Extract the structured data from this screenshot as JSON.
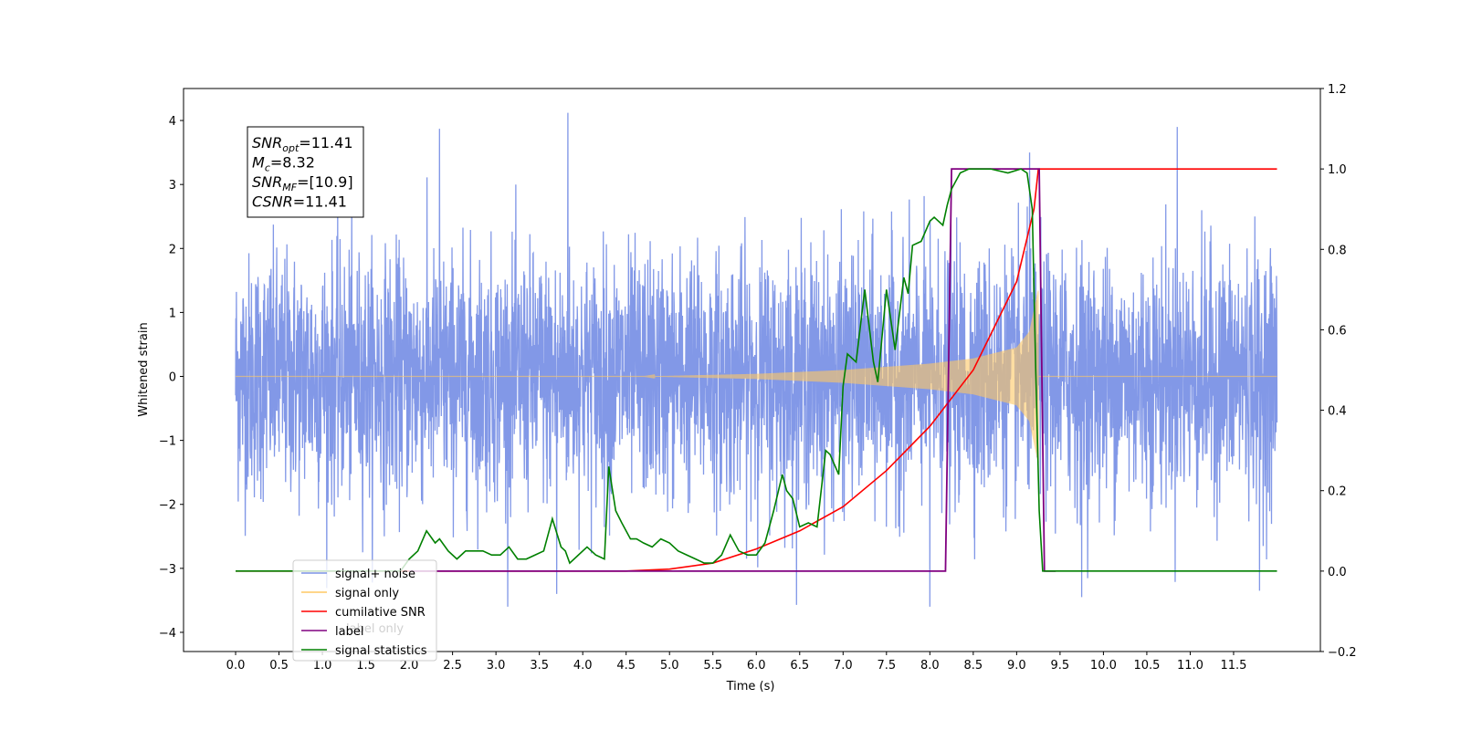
{
  "chart_data": {
    "type": "line",
    "xlabel": "Time (s)",
    "ylabel_left": "Whitened strain",
    "xlim": [
      -0.6,
      12.5
    ],
    "ylim_left": [
      -4.3,
      4.5
    ],
    "ylim_right": [
      -0.2,
      1.2
    ],
    "x_ticks": [
      "0.0",
      "0.5",
      "1.0",
      "1.5",
      "2.0",
      "2.5",
      "3.0",
      "3.5",
      "4.0",
      "4.5",
      "5.0",
      "5.5",
      "6.0",
      "6.5",
      "7.0",
      "7.5",
      "8.0",
      "8.5",
      "9.0",
      "9.5",
      "10.0",
      "10.5",
      "11.0",
      "11.5"
    ],
    "y_ticks_left": [
      "4",
      "3",
      "2",
      "1",
      "0",
      "−1",
      "−2",
      "−3",
      "−4"
    ],
    "y_ticks_right": [
      "1.2",
      "1.0",
      "0.8",
      "0.6",
      "0.4",
      "0.2",
      "0.0",
      "−0.2"
    ],
    "annotation": [
      {
        "base": "SNR",
        "sub": "opt",
        "value": "=11.41"
      },
      {
        "base": "M",
        "sub": "c",
        "value": "=8.32"
      },
      {
        "base": "SNR",
        "sub": "MF",
        "value": "=[10.9]"
      },
      {
        "base": "CSNR",
        "sub": "",
        "value": "=11.41"
      }
    ],
    "legend": [
      {
        "label": "signal+ noise",
        "color": "#7b92e6"
      },
      {
        "label": "signal only",
        "color": "#ffc864"
      },
      {
        "label": "cumilative SNR",
        "color": "#ff0000"
      },
      {
        "label": "label",
        "color": "#800080"
      },
      {
        "label": "signal statistics",
        "color": "#008000"
      }
    ],
    "hidden_legend_text": "label only",
    "series": [
      {
        "name": "signal+ noise",
        "axis": "left",
        "color": "#7b92e6",
        "x_range": [
          0.0,
          12.0
        ],
        "noise_band": [
          -1.5,
          1.5
        ],
        "peak_max": 4.1,
        "peak_min": -3.6,
        "notable_peaks": [
          {
            "x": 3.83,
            "y": 4.12
          },
          {
            "x": 2.35,
            "y": 3.87
          },
          {
            "x": 10.85,
            "y": 3.9
          },
          {
            "x": 9.15,
            "y": 3.5
          },
          {
            "x": 8.0,
            "y": -3.6
          },
          {
            "x": 9.75,
            "y": -3.45
          },
          {
            "x": 3.7,
            "y": -3.4
          },
          {
            "x": 11.8,
            "y": -3.35
          }
        ]
      },
      {
        "name": "signal only",
        "axis": "left",
        "color": "#ffc864",
        "chirp_start": 4.7,
        "merger": 9.25,
        "envelope": [
          [
            4.7,
            0.0
          ],
          [
            6.0,
            0.04
          ],
          [
            7.0,
            0.1
          ],
          [
            8.0,
            0.2
          ],
          [
            8.5,
            0.28
          ],
          [
            9.0,
            0.45
          ],
          [
            9.15,
            0.7
          ],
          [
            9.25,
            1.35
          ]
        ]
      },
      {
        "name": "cumilative SNR",
        "axis": "right",
        "color": "#ff0000",
        "x": [
          0.0,
          4.5,
          5.0,
          5.5,
          6.0,
          6.5,
          7.0,
          7.5,
          8.0,
          8.5,
          9.0,
          9.2,
          9.25,
          12.0
        ],
        "y": [
          0.0,
          0.0,
          0.005,
          0.02,
          0.055,
          0.1,
          0.16,
          0.25,
          0.36,
          0.5,
          0.72,
          0.9,
          1.0,
          1.0
        ]
      },
      {
        "name": "label",
        "axis": "right",
        "color": "#800080",
        "x": [
          2.0,
          8.18,
          8.25,
          9.26,
          9.32,
          9.45
        ],
        "y": [
          0.0,
          0.0,
          1.0,
          1.0,
          0.0,
          0.0
        ]
      },
      {
        "name": "signal statistics",
        "axis": "right",
        "color": "#008000",
        "x": [
          0.0,
          1.9,
          2.0,
          2.1,
          2.2,
          2.3,
          2.35,
          2.45,
          2.55,
          2.65,
          2.75,
          2.85,
          2.95,
          3.05,
          3.15,
          3.25,
          3.35,
          3.45,
          3.55,
          3.65,
          3.75,
          3.8,
          3.85,
          3.95,
          4.05,
          4.15,
          4.25,
          4.3,
          4.38,
          4.45,
          4.55,
          4.62,
          4.7,
          4.8,
          4.9,
          5.0,
          5.1,
          5.2,
          5.3,
          5.4,
          5.5,
          5.6,
          5.7,
          5.8,
          5.9,
          6.0,
          6.1,
          6.2,
          6.3,
          6.35,
          6.42,
          6.5,
          6.6,
          6.7,
          6.8,
          6.85,
          6.95,
          7.0,
          7.05,
          7.15,
          7.25,
          7.35,
          7.4,
          7.5,
          7.6,
          7.7,
          7.75,
          7.8,
          7.9,
          8.0,
          8.05,
          8.15,
          8.2,
          8.25,
          8.35,
          8.45,
          8.55,
          8.7,
          8.9,
          9.05,
          9.12,
          9.18,
          9.22,
          9.26,
          9.3,
          9.4,
          9.5,
          12.0
        ],
        "y": [
          0.0,
          0.0,
          0.03,
          0.05,
          0.1,
          0.07,
          0.08,
          0.05,
          0.03,
          0.05,
          0.05,
          0.05,
          0.04,
          0.04,
          0.06,
          0.03,
          0.03,
          0.04,
          0.05,
          0.13,
          0.06,
          0.05,
          0.02,
          0.04,
          0.06,
          0.04,
          0.03,
          0.26,
          0.15,
          0.12,
          0.08,
          0.08,
          0.07,
          0.06,
          0.08,
          0.07,
          0.05,
          0.04,
          0.03,
          0.02,
          0.02,
          0.04,
          0.09,
          0.05,
          0.04,
          0.04,
          0.07,
          0.15,
          0.24,
          0.2,
          0.18,
          0.11,
          0.12,
          0.11,
          0.3,
          0.29,
          0.24,
          0.46,
          0.54,
          0.52,
          0.7,
          0.52,
          0.47,
          0.7,
          0.55,
          0.73,
          0.69,
          0.81,
          0.82,
          0.87,
          0.88,
          0.86,
          0.91,
          0.95,
          0.99,
          1.0,
          1.0,
          1.0,
          0.99,
          1.0,
          0.99,
          0.9,
          0.5,
          0.15,
          0.0,
          0.0,
          0.0,
          0.0
        ]
      }
    ]
  }
}
